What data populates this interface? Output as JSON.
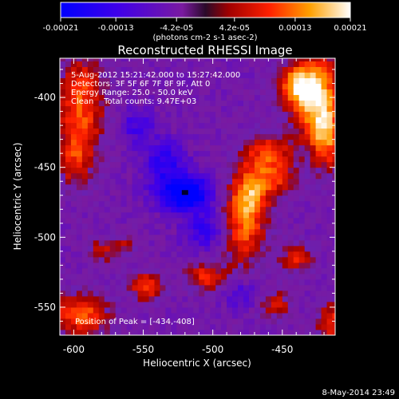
{
  "chart_data": {
    "type": "heatmap",
    "title": "Reconstructed RHESSI Image",
    "xlabel": "Heliocentric X (arcsec)",
    "ylabel": "Heliocentric Y (arcsec)",
    "xlim": [
      -610,
      -412
    ],
    "ylim": [
      -570,
      -372
    ],
    "x_ticks": [
      -600,
      -550,
      -500,
      -450
    ],
    "y_ticks": [
      -550,
      -500,
      -450,
      -400
    ],
    "colorbar": {
      "range": [
        -0.00021,
        0.00021
      ],
      "tick_values": [
        -0.00021,
        -0.00013,
        -4.2e-05,
        4.2e-05,
        0.00013,
        0.00021
      ],
      "tick_labels": [
        "-0.00021",
        "-0.00013",
        "-4.2e-05",
        "4.2e-05",
        "0.00013",
        "0.00021"
      ],
      "unit_label": "(photons cm-2 s-1 asec-2)"
    },
    "annotations": [
      "5-Aug-2012 15:21:42.000 to 15:27:42.000",
      "Detectors: 3F 5F 6F 7F 8F 9F, Att 0",
      "Energy Range: 25.0 - 50.0 keV",
      "Clean    Total counts: 9.47E+03"
    ],
    "peak_label": "Position of Peak = [-434,-408]",
    "peak": [
      -434,
      -408
    ],
    "footer": "8-May-2014 23:49",
    "features": [
      {
        "x": -425,
        "y": -400,
        "value": 0.00021,
        "sx": 12,
        "sy": 22
      },
      {
        "x": -440,
        "y": -392,
        "value": 0.00016,
        "sx": 10,
        "sy": 10
      },
      {
        "x": -418,
        "y": -430,
        "value": 0.00013,
        "sx": 8,
        "sy": 16
      },
      {
        "x": -478,
        "y": -488,
        "value": 0.00017,
        "sx": 11,
        "sy": 22
      },
      {
        "x": -470,
        "y": -465,
        "value": 0.00012,
        "sx": 9,
        "sy": 12
      },
      {
        "x": -460,
        "y": -440,
        "value": 0.00013,
        "sx": 12,
        "sy": 10
      },
      {
        "x": -452,
        "y": -458,
        "value": 9e-05,
        "sx": 9,
        "sy": 8
      },
      {
        "x": -595,
        "y": -405,
        "value": 0.00015,
        "sx": 12,
        "sy": 26
      },
      {
        "x": -600,
        "y": -445,
        "value": 9e-05,
        "sx": 10,
        "sy": 14
      },
      {
        "x": -595,
        "y": -555,
        "value": 0.00016,
        "sx": 14,
        "sy": 11
      },
      {
        "x": -548,
        "y": -535,
        "value": 0.00014,
        "sx": 8,
        "sy": 7
      },
      {
        "x": -505,
        "y": -528,
        "value": 0.00013,
        "sx": 10,
        "sy": 7
      },
      {
        "x": -440,
        "y": -515,
        "value": 0.00012,
        "sx": 8,
        "sy": 7
      },
      {
        "x": -455,
        "y": -548,
        "value": 0.0001,
        "sx": 8,
        "sy": 7
      },
      {
        "x": -415,
        "y": -560,
        "value": 0.00013,
        "sx": 7,
        "sy": 10
      },
      {
        "x": -580,
        "y": -510,
        "value": 0.0001,
        "sx": 7,
        "sy": 6
      },
      {
        "x": -563,
        "y": -505,
        "value": 8e-05,
        "sx": 5,
        "sy": 5
      },
      {
        "x": -520,
        "y": -468,
        "value": -0.00021,
        "sx": 14,
        "sy": 9
      },
      {
        "x": -535,
        "y": -445,
        "value": -0.00011,
        "sx": 11,
        "sy": 11
      },
      {
        "x": -505,
        "y": -495,
        "value": -0.0001,
        "sx": 12,
        "sy": 10
      },
      {
        "x": -555,
        "y": -420,
        "value": -8e-05,
        "sx": 9,
        "sy": 9
      },
      {
        "x": -480,
        "y": -540,
        "value": -7e-05,
        "sx": 9,
        "sy": 8
      }
    ]
  }
}
